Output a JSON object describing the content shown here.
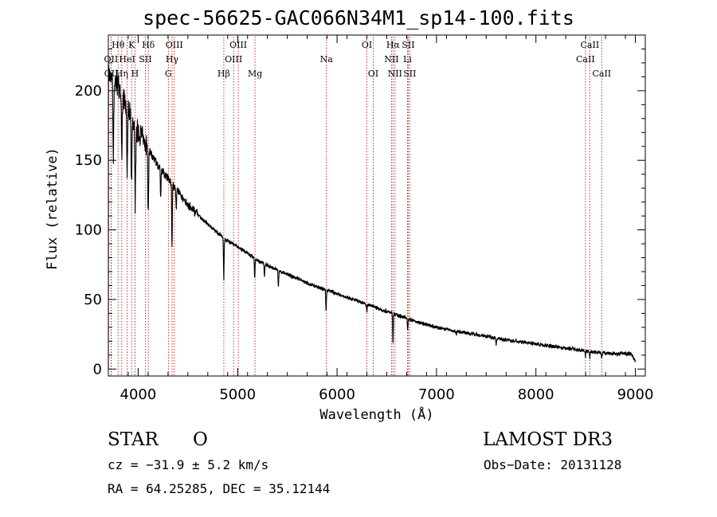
{
  "chart_data": {
    "type": "line",
    "title": "spec-56625-GAC066N34M1_sp14-100.fits",
    "xlabel": "Wavelength (Å)",
    "ylabel": "Flux (relative)",
    "xlim": [
      3700,
      9100
    ],
    "ylim": [
      -5,
      240
    ],
    "xticks": [
      4000,
      5000,
      6000,
      7000,
      8000,
      9000
    ],
    "yticks": [
      0,
      50,
      100,
      150,
      200
    ],
    "continuum": [
      [
        3700,
        212
      ],
      [
        3750,
        210
      ],
      [
        3800,
        204
      ],
      [
        3850,
        196
      ],
      [
        3900,
        187
      ],
      [
        3950,
        178
      ],
      [
        4000,
        170
      ],
      [
        4050,
        164
      ],
      [
        4100,
        158
      ],
      [
        4150,
        152
      ],
      [
        4200,
        146
      ],
      [
        4300,
        137
      ],
      [
        4400,
        127
      ],
      [
        4500,
        118
      ],
      [
        4600,
        111
      ],
      [
        4700,
        104
      ],
      [
        4800,
        98
      ],
      [
        4900,
        92
      ],
      [
        5000,
        88
      ],
      [
        5100,
        83
      ],
      [
        5200,
        78
      ],
      [
        5400,
        71
      ],
      [
        5600,
        65
      ],
      [
        5800,
        59
      ],
      [
        6000,
        54
      ],
      [
        6200,
        49
      ],
      [
        6400,
        44
      ],
      [
        6600,
        39
      ],
      [
        6800,
        34
      ],
      [
        7000,
        30
      ],
      [
        7200,
        27
      ],
      [
        7400,
        25
      ],
      [
        7600,
        22
      ],
      [
        7800,
        20
      ],
      [
        8000,
        18
      ],
      [
        8200,
        16
      ],
      [
        8400,
        14
      ],
      [
        8600,
        12
      ],
      [
        8800,
        11
      ],
      [
        9000,
        11
      ]
    ],
    "absorption_features": [
      [
        3750,
        55
      ],
      [
        3835,
        40
      ],
      [
        3889,
        45
      ],
      [
        3933,
        50
      ],
      [
        3970,
        60
      ],
      [
        4101,
        45
      ],
      [
        4226,
        20
      ],
      [
        4340,
        45
      ],
      [
        4383,
        15
      ],
      [
        4861,
        30
      ],
      [
        5172,
        15
      ],
      [
        5270,
        10
      ],
      [
        5410,
        12
      ],
      [
        5890,
        16
      ],
      [
        6300,
        5
      ],
      [
        6563,
        22
      ],
      [
        6710,
        8
      ],
      [
        7200,
        3
      ],
      [
        7600,
        5
      ],
      [
        8498,
        4
      ],
      [
        8542,
        5
      ],
      [
        8662,
        4
      ]
    ],
    "spectral_lines": [
      {
        "label": "Hθ",
        "wavelength": 3798,
        "row": 0
      },
      {
        "label": "K",
        "wavelength": 3934,
        "row": 0
      },
      {
        "label": "Hδ",
        "wavelength": 4102,
        "row": 0
      },
      {
        "label": "OIII",
        "wavelength": 4363,
        "row": 0
      },
      {
        "label": "OIII",
        "wavelength": 5007,
        "row": 0
      },
      {
        "label": "OI",
        "wavelength": 6300,
        "row": 0
      },
      {
        "label": "Hα",
        "wavelength": 6563,
        "row": 0
      },
      {
        "label": "SII",
        "wavelength": 6716,
        "row": 0
      },
      {
        "label": "CaII",
        "wavelength": 8542,
        "row": 0
      },
      {
        "label": "OII",
        "wavelength": 3727,
        "row": 1
      },
      {
        "label": "HeI",
        "wavelength": 3889,
        "row": 1
      },
      {
        "label": "SII",
        "wavelength": 4072,
        "row": 1
      },
      {
        "label": "Hγ",
        "wavelength": 4341,
        "row": 1
      },
      {
        "label": "OIII",
        "wavelength": 4959,
        "row": 1
      },
      {
        "label": "Na",
        "wavelength": 5893,
        "row": 1
      },
      {
        "label": "NII",
        "wavelength": 6548,
        "row": 1
      },
      {
        "label": "Li",
        "wavelength": 6708,
        "row": 1
      },
      {
        "label": "CaII",
        "wavelength": 8498,
        "row": 1
      },
      {
        "label": "OII",
        "wavelength": 3729,
        "row": 2
      },
      {
        "label": "Hη",
        "wavelength": 3835,
        "row": 2
      },
      {
        "label": "H",
        "wavelength": 3968,
        "row": 2
      },
      {
        "label": "G",
        "wavelength": 4304,
        "row": 2
      },
      {
        "label": "Hβ",
        "wavelength": 4861,
        "row": 2
      },
      {
        "label": "Mg",
        "wavelength": 5175,
        "row": 2
      },
      {
        "label": "OI",
        "wavelength": 6364,
        "row": 2
      },
      {
        "label": "NII",
        "wavelength": 6583,
        "row": 2
      },
      {
        "label": "SII",
        "wavelength": 6731,
        "row": 2
      },
      {
        "label": "CaII",
        "wavelength": 8662,
        "row": 2
      }
    ]
  },
  "info": {
    "object_class": "STAR",
    "subclass": "O",
    "survey": "LAMOST DR3",
    "cz": "cz = −31.9 ± 5.2 km/s",
    "obs_date": "Obs−Date: 20131128",
    "coords": "RA =  64.25285, DEC =  35.12144"
  }
}
